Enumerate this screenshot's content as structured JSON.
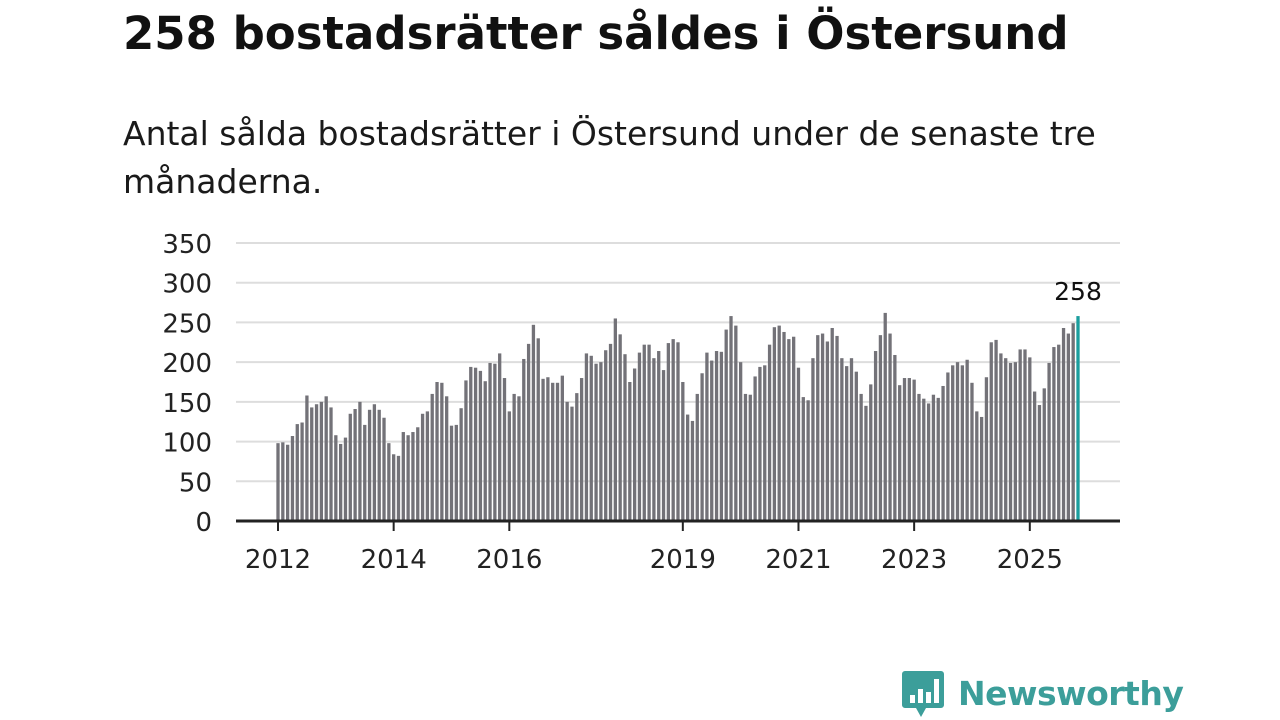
{
  "title": "258 bostadsrätter såldes i Östersund",
  "subtitle": "Antal sålda bostadsrätter i Östersund under de senaste tre månaderna.",
  "brand": {
    "name": "Newsworthy",
    "color": "#3c9e9a",
    "icon": "newsworthy-chat-bars-icon"
  },
  "chart_data": {
    "type": "bar",
    "title": "258 bostadsrätter såldes i Östersund",
    "subtitle": "Antal sålda bostadsrätter i Östersund under de senaste tre månaderna.",
    "xlabel": "",
    "ylabel": "",
    "ylim": [
      0,
      350
    ],
    "y_ticks": [
      0,
      50,
      100,
      150,
      200,
      250,
      300,
      350
    ],
    "grid": true,
    "colors": {
      "bar": "#737278",
      "highlight": "#1b9e9e",
      "grid": "#dddddd",
      "axis": "#222222"
    },
    "x_tick_labels": [
      {
        "label": "2012",
        "index": 0
      },
      {
        "label": "2014",
        "index": 24
      },
      {
        "label": "2016",
        "index": 48
      },
      {
        "label": "2019",
        "index": 84
      },
      {
        "label": "2021",
        "index": 108
      },
      {
        "label": "2023",
        "index": 132
      },
      {
        "label": "2025",
        "index": 156
      }
    ],
    "annotation": {
      "text": "258",
      "index": 166
    },
    "values": [
      98,
      99,
      96,
      107,
      122,
      124,
      158,
      143,
      147,
      150,
      157,
      143,
      108,
      97,
      105,
      135,
      141,
      150,
      121,
      140,
      147,
      140,
      130,
      98,
      84,
      82,
      112,
      108,
      112,
      118,
      135,
      138,
      160,
      175,
      174,
      157,
      120,
      121,
      142,
      177,
      194,
      193,
      189,
      176,
      199,
      198,
      211,
      180,
      138,
      160,
      157,
      204,
      223,
      247,
      230,
      179,
      181,
      174,
      174,
      183,
      150,
      144,
      161,
      180,
      211,
      208,
      198,
      200,
      215,
      223,
      255,
      235,
      210,
      175,
      192,
      212,
      222,
      222,
      205,
      214,
      190,
      224,
      229,
      225,
      175,
      134,
      126,
      160,
      186,
      212,
      202,
      214,
      213,
      241,
      258,
      246,
      200,
      160,
      159,
      182,
      194,
      196,
      222,
      244,
      246,
      238,
      229,
      232,
      193,
      156,
      152,
      205,
      234,
      236,
      226,
      243,
      233,
      205,
      195,
      205,
      188,
      160,
      145,
      172,
      214,
      234,
      262,
      236,
      209,
      171,
      180,
      180,
      178,
      160,
      154,
      148,
      159,
      155,
      170,
      187,
      196,
      200,
      196,
      203,
      174,
      138,
      131,
      181,
      225,
      228,
      211,
      205,
      199,
      200,
      216,
      216,
      206,
      163,
      146,
      167,
      199,
      219,
      222,
      243,
      236,
      249,
      258
    ]
  }
}
